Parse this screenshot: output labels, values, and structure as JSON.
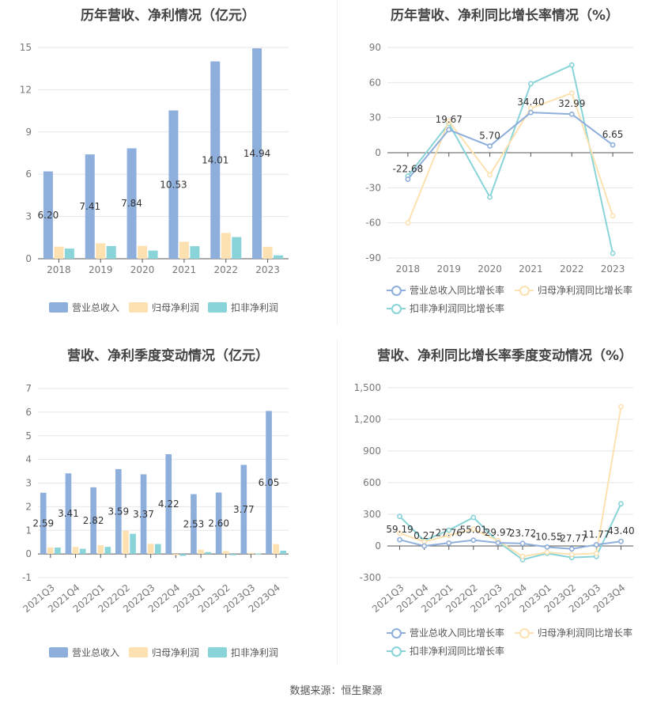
{
  "colors": {
    "revenue": "#8eaedb",
    "net_profit": "#fde1b1",
    "deducted_profit": "#88d4d8",
    "revenue_line": "#8eaedb",
    "net_line": "#fde1b1",
    "deducted_line": "#88d4d8"
  },
  "source": "数据来源：恒生聚源",
  "chart_data": [
    {
      "type": "bar",
      "title": "历年营收、净利情况（亿元）",
      "categories": [
        "2018",
        "2019",
        "2020",
        "2021",
        "2022",
        "2023"
      ],
      "ylim": [
        0,
        15
      ],
      "yticks": [
        0,
        3,
        6,
        9,
        12,
        15
      ],
      "grid": true,
      "legend": "bottom",
      "series": [
        {
          "name": "营业总收入",
          "values": [
            6.2,
            7.41,
            7.84,
            10.53,
            14.01,
            14.94
          ],
          "labels": [
            "6.20",
            "7.41",
            "7.84",
            "10.53",
            "14.01",
            "14.94"
          ]
        },
        {
          "name": "归母净利润",
          "values": [
            0.86,
            1.1,
            0.91,
            1.21,
            1.83,
            0.85
          ]
        },
        {
          "name": "扣非净利润",
          "values": [
            0.72,
            0.9,
            0.58,
            0.89,
            1.54,
            0.24
          ]
        }
      ]
    },
    {
      "type": "line",
      "title": "历年营收、净利同比增长率情况（%）",
      "categories": [
        "2018",
        "2019",
        "2020",
        "2021",
        "2022",
        "2023"
      ],
      "ylim": [
        -90,
        90
      ],
      "yticks": [
        -90,
        -60,
        -30,
        0,
        30,
        60,
        90
      ],
      "grid": true,
      "legend": "bottom",
      "series": [
        {
          "name": "营业总收入同比增长率",
          "values": [
            -22.68,
            19.67,
            5.7,
            34.4,
            32.99,
            6.65
          ],
          "labels": [
            "-22.68",
            "19.67",
            "5.70",
            "34.40",
            "32.99",
            "6.65"
          ]
        },
        {
          "name": "归母净利润同比增长率",
          "values": [
            -60,
            27,
            -19,
            38,
            51,
            -54
          ]
        },
        {
          "name": "扣非净利润同比增长率",
          "values": [
            -20,
            25,
            -38,
            59,
            75,
            -86
          ]
        }
      ]
    },
    {
      "type": "bar",
      "title": "营收、净利季度变动情况（亿元）",
      "categories": [
        "2021Q3",
        "2021Q4",
        "2022Q1",
        "2022Q2",
        "2022Q3",
        "2022Q4",
        "2023Q1",
        "2023Q2",
        "2023Q3",
        "2023Q4"
      ],
      "ylim": [
        -1,
        7
      ],
      "yticks": [
        -1,
        0,
        1,
        2,
        3,
        4,
        5,
        6,
        7
      ],
      "grid": true,
      "legend": "bottom",
      "series": [
        {
          "name": "营业总收入",
          "values": [
            2.59,
            3.41,
            2.82,
            3.59,
            3.37,
            4.22,
            2.53,
            2.6,
            3.77,
            6.05
          ],
          "labels": [
            "2.59",
            "3.41",
            "2.82",
            "3.59",
            "3.37",
            "4.22",
            "2.53",
            "2.60",
            "3.77",
            "6.05"
          ]
        },
        {
          "name": "归母净利润",
          "values": [
            0.28,
            0.3,
            0.37,
            0.98,
            0.43,
            -0.05,
            0.18,
            0.12,
            0.05,
            0.42
          ]
        },
        {
          "name": "扣非净利润",
          "values": [
            0.27,
            0.22,
            0.3,
            0.85,
            0.42,
            -0.08,
            0.08,
            -0.05,
            0.02,
            0.14
          ]
        }
      ]
    },
    {
      "type": "line",
      "title": "营收、净利同比增长率季度变动情况（%）",
      "categories": [
        "2021Q3",
        "2021Q4",
        "2022Q1",
        "2022Q2",
        "2022Q3",
        "2022Q4",
        "2023Q1",
        "2023Q2",
        "2023Q3",
        "2023Q4"
      ],
      "ylim": [
        -300,
        1500
      ],
      "yticks": [
        -300,
        0,
        300,
        600,
        900,
        1200,
        1500
      ],
      "ytick_labels": [
        "-300",
        "0",
        "300",
        "600",
        "900",
        "1,200",
        "1,500"
      ],
      "grid": true,
      "legend": "bottom",
      "series": [
        {
          "name": "营业总收入同比增长率",
          "values": [
            59.19,
            0.27,
            27.76,
            55.01,
            29.97,
            23.72,
            -10.55,
            -27.77,
            11.77,
            43.4
          ],
          "labels": [
            "59.19",
            "0.27",
            "27.76",
            "55.01",
            "29.97",
            "23.72",
            "-10.55",
            "-27.77",
            "11.77",
            "43.40"
          ]
        },
        {
          "name": "归母净利润同比增长率",
          "values": [
            120,
            40,
            100,
            160,
            50,
            -100,
            -60,
            -80,
            -70,
            1320
          ]
        },
        {
          "name": "扣非净利润同比增长率",
          "values": [
            280,
            50,
            150,
            270,
            40,
            -130,
            -70,
            -110,
            -100,
            400
          ]
        }
      ]
    }
  ]
}
